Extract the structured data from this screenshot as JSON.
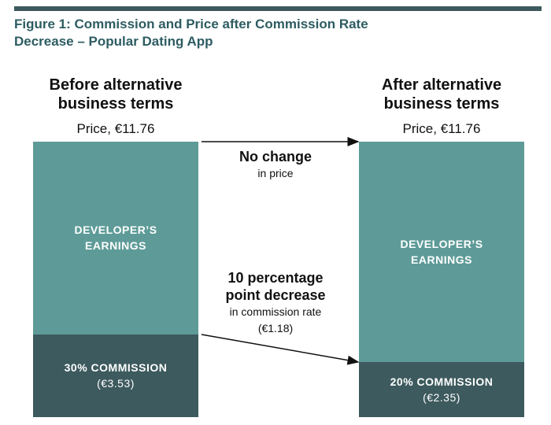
{
  "chart_data": {
    "type": "stacked-bar",
    "title": "Figure 1: Commission and Price after Commission Rate Decrease – Popular Dating App",
    "categories": [
      "Before alternative business terms",
      "After alternative business terms"
    ],
    "price_labels": [
      "Price, €11.76",
      "Price, €11.76"
    ],
    "ylim": [
      0,
      11.76
    ],
    "series": [
      {
        "color": "#3d5a5e",
        "values": [
          3.53,
          2.35
        ],
        "segment_labels": [
          "30% COMMISSION",
          "20% COMMISSION"
        ],
        "value_labels": [
          "(€3.53)",
          "(€2.35)"
        ]
      },
      {
        "name": "DEVELOPER’S EARNINGS",
        "color": "#5e9b98",
        "values": [
          8.23,
          9.41
        ]
      }
    ],
    "annotations": [
      {
        "title": "No change",
        "text": "in price"
      },
      {
        "title": "10 percentage point decrease",
        "text": "in commission rate",
        "value_label": "(€1.18)"
      }
    ]
  }
}
